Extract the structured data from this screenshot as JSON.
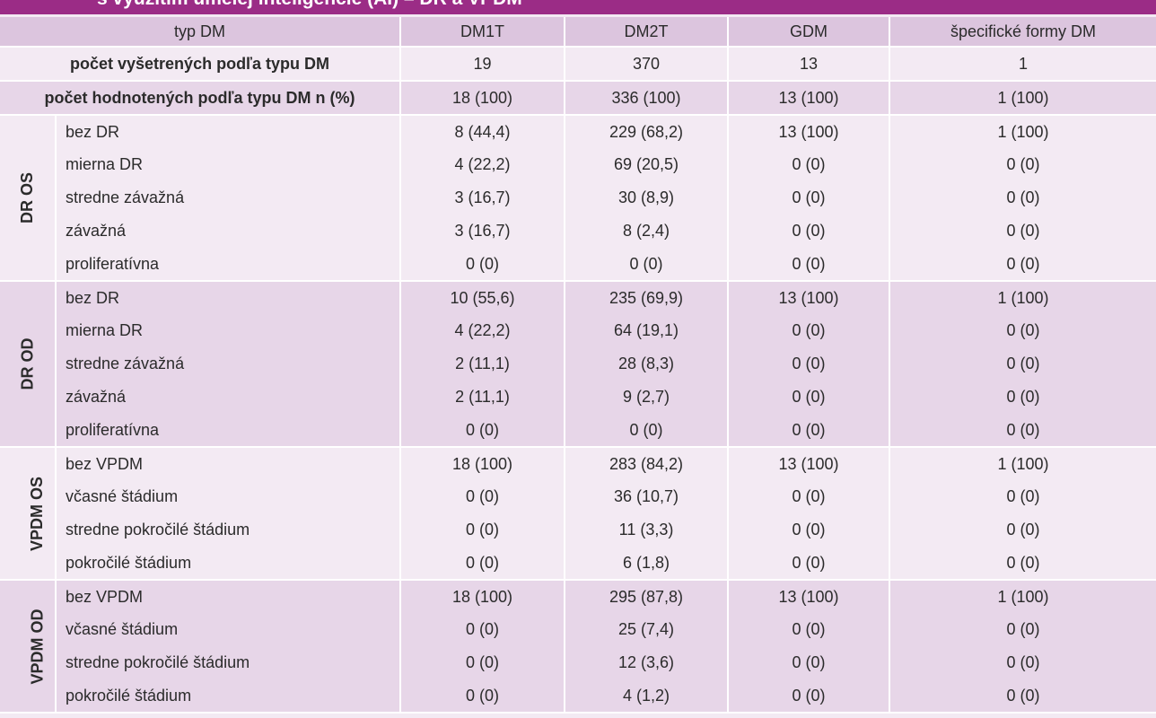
{
  "title_fragment": "s využitím umelej inteligencie (AI) – DR a VPDM",
  "header": {
    "typ": "typ DM",
    "cols": [
      "DM1T",
      "DM2T",
      "GDM",
      "špecifické formy DM"
    ]
  },
  "summary": [
    {
      "label": "počet vyšetrených podľa typu DM",
      "values": [
        "19",
        "370",
        "13",
        "1"
      ]
    },
    {
      "label": "počet hodnotených podľa typu DM n (%)",
      "values": [
        "18 (100)",
        "336 (100)",
        "13 (100)",
        "1 (100)"
      ]
    }
  ],
  "groups": [
    {
      "name": "DR OS",
      "rows": [
        {
          "label": "bez DR",
          "values": [
            "8 (44,4)",
            "229 (68,2)",
            "13 (100)",
            "1 (100)"
          ]
        },
        {
          "label": "mierna DR",
          "values": [
            "4 (22,2)",
            "69 (20,5)",
            "0 (0)",
            "0 (0)"
          ]
        },
        {
          "label": "stredne závažná",
          "values": [
            "3 (16,7)",
            "30 (8,9)",
            "0 (0)",
            "0 (0)"
          ]
        },
        {
          "label": "závažná",
          "values": [
            "3 (16,7)",
            "8 (2,4)",
            "0 (0)",
            "0 (0)"
          ]
        },
        {
          "label": "proliferatívna",
          "values": [
            "0 (0)",
            "0 (0)",
            "0 (0)",
            "0 (0)"
          ]
        }
      ]
    },
    {
      "name": "DR OD",
      "rows": [
        {
          "label": "bez DR",
          "values": [
            "10 (55,6)",
            "235 (69,9)",
            "13 (100)",
            "1 (100)"
          ]
        },
        {
          "label": "mierna DR",
          "values": [
            "4 (22,2)",
            "64 (19,1)",
            "0 (0)",
            "0 (0)"
          ]
        },
        {
          "label": "stredne závažná",
          "values": [
            "2 (11,1)",
            "28 (8,3)",
            "0 (0)",
            "0 (0)"
          ]
        },
        {
          "label": "závažná",
          "values": [
            "2 (11,1)",
            "9 (2,7)",
            "0 (0)",
            "0 (0)"
          ]
        },
        {
          "label": "proliferatívna",
          "values": [
            "0 (0)",
            "0 (0)",
            "0 (0)",
            "0 (0)"
          ]
        }
      ]
    },
    {
      "name": "VPDM OS",
      "rows": [
        {
          "label": "bez VPDM",
          "values": [
            "18 (100)",
            "283 (84,2)",
            "13 (100)",
            "1 (100)"
          ]
        },
        {
          "label": "včasné štádium",
          "values": [
            "0 (0)",
            "36 (10,7)",
            "0 (0)",
            "0 (0)"
          ]
        },
        {
          "label": "stredne pokročilé štádium",
          "values": [
            "0 (0)",
            "11 (3,3)",
            "0 (0)",
            "0 (0)"
          ]
        },
        {
          "label": "pokročilé štádium",
          "values": [
            "0 (0)",
            "6 (1,8)",
            "0 (0)",
            "0 (0)"
          ]
        }
      ]
    },
    {
      "name": "VPDM OD",
      "rows": [
        {
          "label": "bez VPDM",
          "values": [
            "18 (100)",
            "295 (87,8)",
            "13 (100)",
            "1 (100)"
          ]
        },
        {
          "label": "včasné štádium",
          "values": [
            "0 (0)",
            "25 (7,4)",
            "0 (0)",
            "0 (0)"
          ]
        },
        {
          "label": "stredne pokročilé štádium",
          "values": [
            "0 (0)",
            "12 (3,6)",
            "0 (0)",
            "0 (0)"
          ]
        },
        {
          "label": "pokročilé štádium",
          "values": [
            "0 (0)",
            "4 (1,2)",
            "0 (0)",
            "0 (0)"
          ]
        }
      ]
    }
  ],
  "colors": {
    "title_bar": "#9b2c86",
    "header_bg": "#dcc5de",
    "light_bg": "#f3eaf3",
    "dark_bg": "#e7d6e8"
  }
}
